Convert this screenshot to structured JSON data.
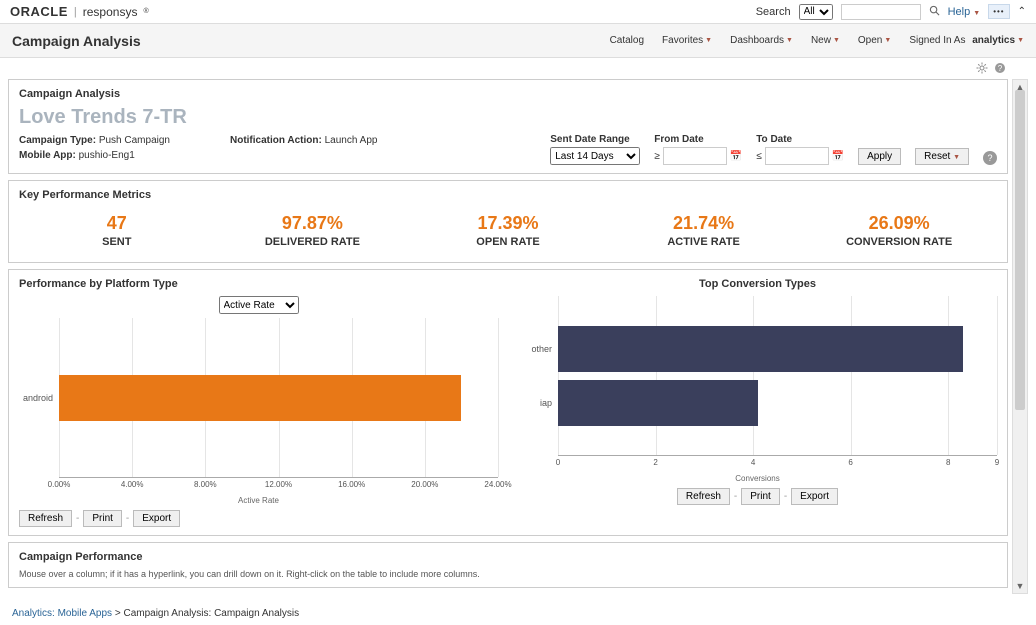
{
  "header": {
    "brand_primary": "ORACLE",
    "brand_secondary": "responsys",
    "search_label": "Search",
    "search_scope": "All",
    "search_placeholder": "",
    "help_label": "Help"
  },
  "subheader": {
    "title": "Campaign Analysis",
    "nav": {
      "catalog": "Catalog",
      "favorites": "Favorites",
      "dashboards": "Dashboards",
      "new": "New",
      "open": "Open",
      "signed_in_as": "Signed In As",
      "user": "analytics"
    }
  },
  "campaign": {
    "section_label": "Campaign Analysis",
    "title": "Love Trends 7-TR",
    "type_label": "Campaign Type:",
    "type_value": "Push Campaign",
    "notif_label": "Notification Action:",
    "notif_value": "Launch App",
    "app_label": "Mobile App:",
    "app_value": "pushio-Eng1",
    "filters": {
      "date_range_label": "Sent Date Range",
      "date_range_value": "Last 14 Days",
      "from_label": "From Date",
      "from_value": "",
      "to_label": "To Date",
      "to_value": "",
      "apply": "Apply",
      "reset": "Reset"
    }
  },
  "metrics": {
    "section_label": "Key Performance Metrics",
    "items": [
      {
        "value": "47",
        "label": "SENT"
      },
      {
        "value": "97.87%",
        "label": "DELIVERED RATE"
      },
      {
        "value": "17.39%",
        "label": "OPEN RATE"
      },
      {
        "value": "21.74%",
        "label": "ACTIVE RATE"
      },
      {
        "value": "26.09%",
        "label": "CONVERSION RATE"
      }
    ]
  },
  "chart_left": {
    "title": "Performance by Platform Type",
    "dropdown_value": "Active Rate",
    "type": "horizontal_bar",
    "categories": [
      "android"
    ],
    "values": [
      22.0
    ],
    "bar_color": "#e87817",
    "x_ticks": [
      "0.00%",
      "4.00%",
      "8.00%",
      "12.00%",
      "16.00%",
      "20.00%",
      "24.00%"
    ],
    "x_max": 24.0,
    "axis_label": "Active Rate",
    "actions": {
      "refresh": "Refresh",
      "print": "Print",
      "export": "Export"
    }
  },
  "chart_right": {
    "title": "Top Conversion Types",
    "type": "horizontal_bar",
    "categories": [
      "other",
      "iap"
    ],
    "values": [
      8.3,
      4.1
    ],
    "bar_color": "#3a3f5c",
    "x_ticks": [
      "0",
      "2",
      "4",
      "6",
      "8",
      "9"
    ],
    "x_tick_vals": [
      0,
      2,
      4,
      6,
      8,
      9
    ],
    "x_max": 9.0,
    "axis_label": "Conversions",
    "actions": {
      "refresh": "Refresh",
      "print": "Print",
      "export": "Export"
    }
  },
  "perf_section": {
    "title": "Campaign Performance",
    "note": "Mouse over a column; if it has a hyperlink, you can drill down on it. Right-click on the table to include more columns."
  },
  "breadcrumb": {
    "root": "Analytics: Mobile Apps",
    "current": "Campaign Analysis: Campaign Analysis"
  }
}
